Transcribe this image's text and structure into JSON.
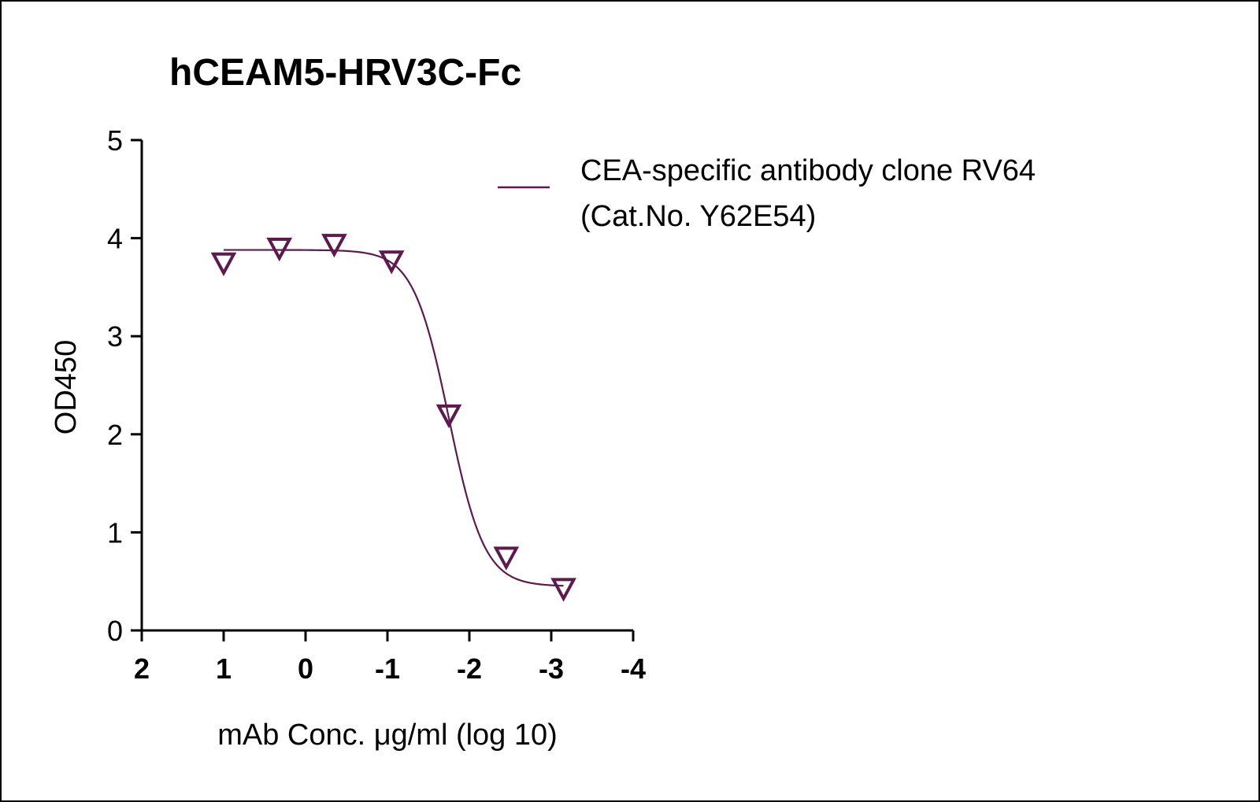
{
  "chart_data": {
    "type": "line",
    "title": "hCEAM5-HRV3C-Fc",
    "xlabel": "mAb Conc. μg/ml (log 10)",
    "ylabel": "OD450",
    "xlim": [
      2,
      -4
    ],
    "ylim": [
      0,
      5
    ],
    "x_reversed": true,
    "x_ticks": [
      2,
      1,
      0,
      -1,
      -2,
      -3,
      -4
    ],
    "x_tick_labels": [
      "2",
      "1",
      "0",
      "-1",
      "-2",
      "-3",
      "-4"
    ],
    "y_ticks": [
      0,
      1,
      2,
      3,
      4,
      5
    ],
    "y_tick_labels": [
      "0",
      "1",
      "2",
      "3",
      "4",
      "5"
    ],
    "grid": false,
    "legend_position": "top-right",
    "series": [
      {
        "name": "CEA-specific antibody clone RV64 (Cat.No. Y62E54)",
        "legend_lines": [
          "CEA-specific antibody clone RV64",
          "(Cat.No. Y62E54)"
        ],
        "color": "#5c1a4e",
        "marker": "triangle-down-open",
        "points": [
          {
            "x": 1.0,
            "y": 3.75
          },
          {
            "x": 0.32,
            "y": 3.9
          },
          {
            "x": -0.35,
            "y": 3.94
          },
          {
            "x": -1.05,
            "y": 3.77
          },
          {
            "x": -1.75,
            "y": 2.2
          },
          {
            "x": -2.45,
            "y": 0.75
          },
          {
            "x": -3.15,
            "y": 0.43
          }
        ],
        "fit": {
          "model": "4PL",
          "top": 3.88,
          "bottom": 0.45,
          "logEC50": -1.75,
          "hill": 2.0,
          "x_range": [
            1.0,
            -3.15
          ]
        }
      }
    ]
  }
}
